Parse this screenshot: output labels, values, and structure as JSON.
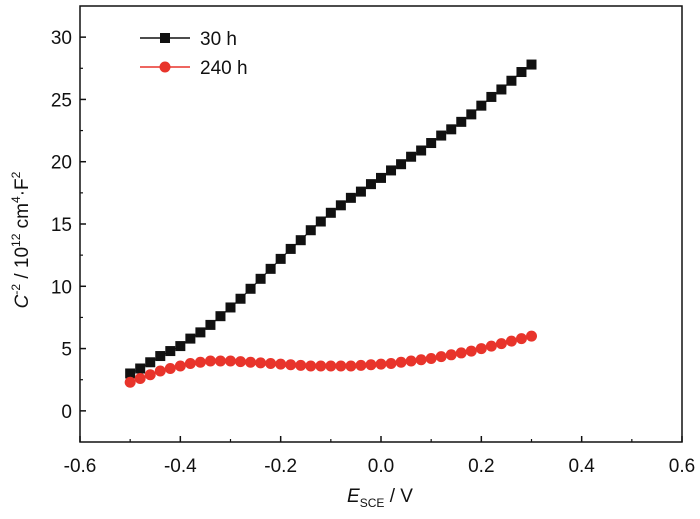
{
  "chart_data": {
    "type": "scatter",
    "xlim": [
      -0.6,
      0.6
    ],
    "ylim": [
      -2.5,
      32.5
    ],
    "x_ticks": [
      -0.6,
      -0.4,
      -0.2,
      0.0,
      0.2,
      0.4,
      0.6
    ],
    "x_tick_labels": [
      "-0.6",
      "-0.4",
      "-0.2",
      "0.0",
      "0.2",
      "0.4",
      "0.6"
    ],
    "y_ticks": [
      0,
      5,
      10,
      15,
      20,
      25,
      30
    ],
    "y_tick_labels": [
      "0",
      "5",
      "10",
      "15",
      "20",
      "25",
      "30"
    ],
    "xlabel": {
      "main": "E",
      "sub": "SCE",
      "rest": " / V"
    },
    "ylabel": {
      "c": "C",
      "exp1": "-2",
      "mid": " / 10",
      "exp2": "12",
      "unit": " cm",
      "exp3": "4",
      "dot": "·F",
      "exp4": "2"
    },
    "legend_position": "top-left",
    "series": [
      {
        "name": "30 h",
        "marker": "square",
        "color": "#111111",
        "x": [
          -0.5,
          -0.48,
          -0.46,
          -0.44,
          -0.42,
          -0.4,
          -0.38,
          -0.36,
          -0.34,
          -0.32,
          -0.3,
          -0.28,
          -0.26,
          -0.24,
          -0.22,
          -0.2,
          -0.18,
          -0.16,
          -0.14,
          -0.12,
          -0.1,
          -0.08,
          -0.06,
          -0.04,
          -0.02,
          0.0,
          0.02,
          0.04,
          0.06,
          0.08,
          0.1,
          0.12,
          0.14,
          0.16,
          0.18,
          0.2,
          0.22,
          0.24,
          0.26,
          0.28,
          0.3
        ],
        "y": [
          3.0,
          3.4,
          3.9,
          4.4,
          4.8,
          5.2,
          5.8,
          6.3,
          6.9,
          7.6,
          8.3,
          9.0,
          9.8,
          10.6,
          11.4,
          12.2,
          13.0,
          13.7,
          14.5,
          15.2,
          15.9,
          16.5,
          17.1,
          17.6,
          18.2,
          18.7,
          19.3,
          19.8,
          20.4,
          20.9,
          21.5,
          22.1,
          22.6,
          23.2,
          23.8,
          24.5,
          25.2,
          25.8,
          26.5,
          27.2,
          27.8
        ]
      },
      {
        "name": "240 h",
        "marker": "circle",
        "color": "#e8342b",
        "x": [
          -0.5,
          -0.48,
          -0.46,
          -0.44,
          -0.42,
          -0.4,
          -0.38,
          -0.36,
          -0.34,
          -0.32,
          -0.3,
          -0.28,
          -0.26,
          -0.24,
          -0.22,
          -0.2,
          -0.18,
          -0.16,
          -0.14,
          -0.12,
          -0.1,
          -0.08,
          -0.06,
          -0.04,
          -0.02,
          0.0,
          0.02,
          0.04,
          0.06,
          0.08,
          0.1,
          0.12,
          0.14,
          0.16,
          0.18,
          0.2,
          0.22,
          0.24,
          0.26,
          0.28,
          0.3
        ],
        "y": [
          2.3,
          2.6,
          2.9,
          3.2,
          3.4,
          3.6,
          3.8,
          3.9,
          4.0,
          4.0,
          4.0,
          3.95,
          3.9,
          3.85,
          3.8,
          3.75,
          3.7,
          3.65,
          3.6,
          3.6,
          3.6,
          3.6,
          3.6,
          3.65,
          3.7,
          3.75,
          3.8,
          3.9,
          4.0,
          4.1,
          4.2,
          4.35,
          4.5,
          4.65,
          4.8,
          5.0,
          5.2,
          5.4,
          5.6,
          5.8,
          6.0
        ]
      }
    ]
  }
}
